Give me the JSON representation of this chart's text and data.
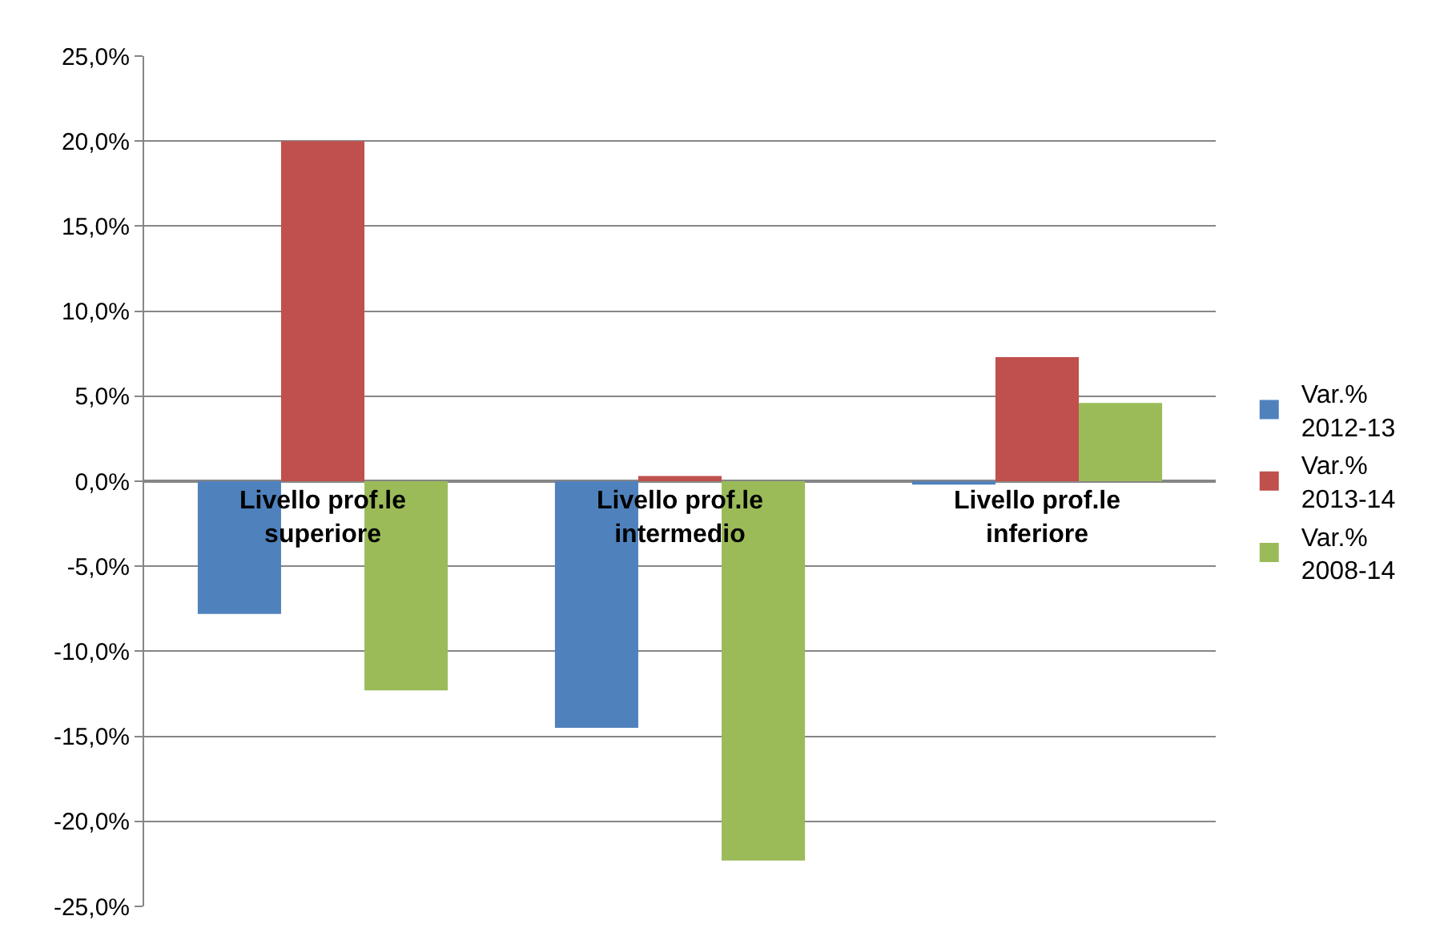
{
  "chart_data": {
    "type": "bar",
    "categories": [
      "Livello prof.le\nsuperiore",
      "Livello prof.le\nintermedio",
      "Livello prof.le\ninferiore"
    ],
    "series": [
      {
        "name": "Var.%\n2012-13",
        "color": "#4f81bd",
        "values": [
          -7.8,
          -14.5,
          -0.2
        ]
      },
      {
        "name": "Var.%\n2013-14",
        "color": "#c0504d",
        "values": [
          20.0,
          0.3,
          7.3
        ]
      },
      {
        "name": "Var.%\n2008-14",
        "color": "#9bbb59",
        "values": [
          -12.3,
          -22.3,
          4.6
        ]
      }
    ],
    "ylim": [
      -25,
      25
    ],
    "yticks": [
      {
        "value": -25,
        "label": "-25,0%"
      },
      {
        "value": -20,
        "label": "-20,0%"
      },
      {
        "value": -15,
        "label": "-15,0%"
      },
      {
        "value": -10,
        "label": "-10,0%"
      },
      {
        "value": -5,
        "label": "-5,0%"
      },
      {
        "value": 0,
        "label": "0,0%"
      },
      {
        "value": 5,
        "label": "5,0%"
      },
      {
        "value": 10,
        "label": "10,0%"
      },
      {
        "value": 15,
        "label": "15,0%"
      },
      {
        "value": 20,
        "label": "20,0%"
      },
      {
        "value": 25,
        "label": "25,0%"
      }
    ],
    "grid": "y",
    "legend": "right"
  }
}
